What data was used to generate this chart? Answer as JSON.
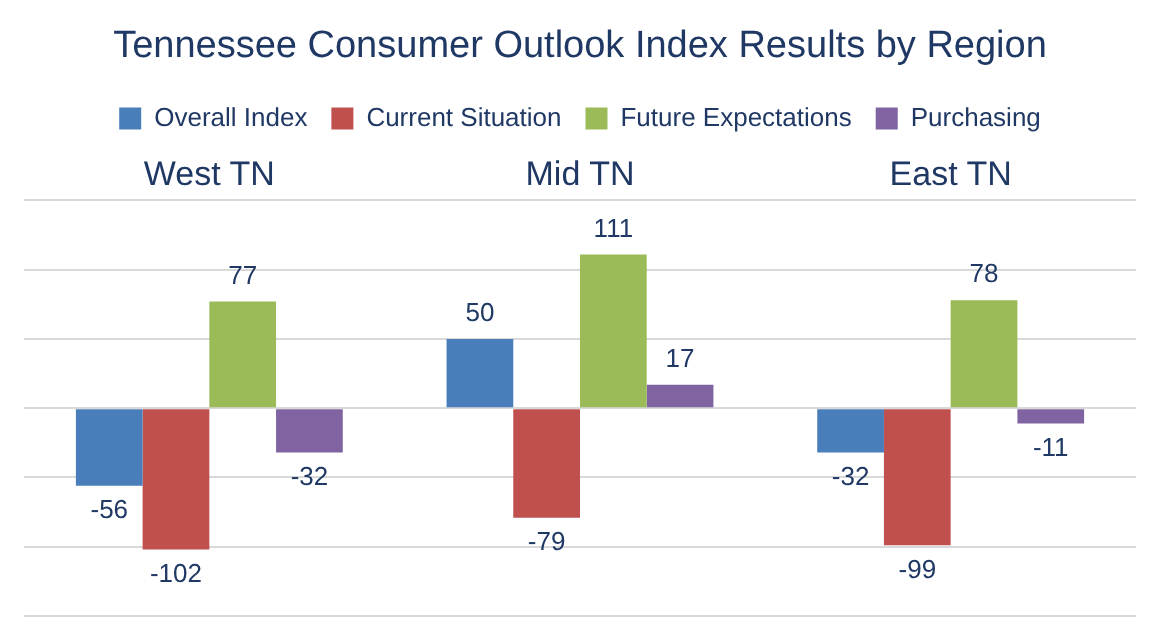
{
  "chart_data": {
    "type": "bar",
    "title": "Tennessee Consumer Outlook Index Results by Region",
    "categories": [
      "West TN",
      "Mid TN",
      "East TN"
    ],
    "series": [
      {
        "name": "Overall Index",
        "color": "#4a7ebb",
        "values": [
          -56,
          50,
          -32
        ]
      },
      {
        "name": "Current Situation",
        "color": "#c0504d",
        "values": [
          -102,
          -79,
          -99
        ]
      },
      {
        "name": "Future Expectations",
        "color": "#9bbb59",
        "values": [
          77,
          111,
          78
        ]
      },
      {
        "name": "Purchasing",
        "color": "#8064a2",
        "values": [
          -32,
          17,
          -11
        ]
      }
    ],
    "tick_labels": "x",
    "grid": "y",
    "legend": "top",
    "data_labels": true
  }
}
